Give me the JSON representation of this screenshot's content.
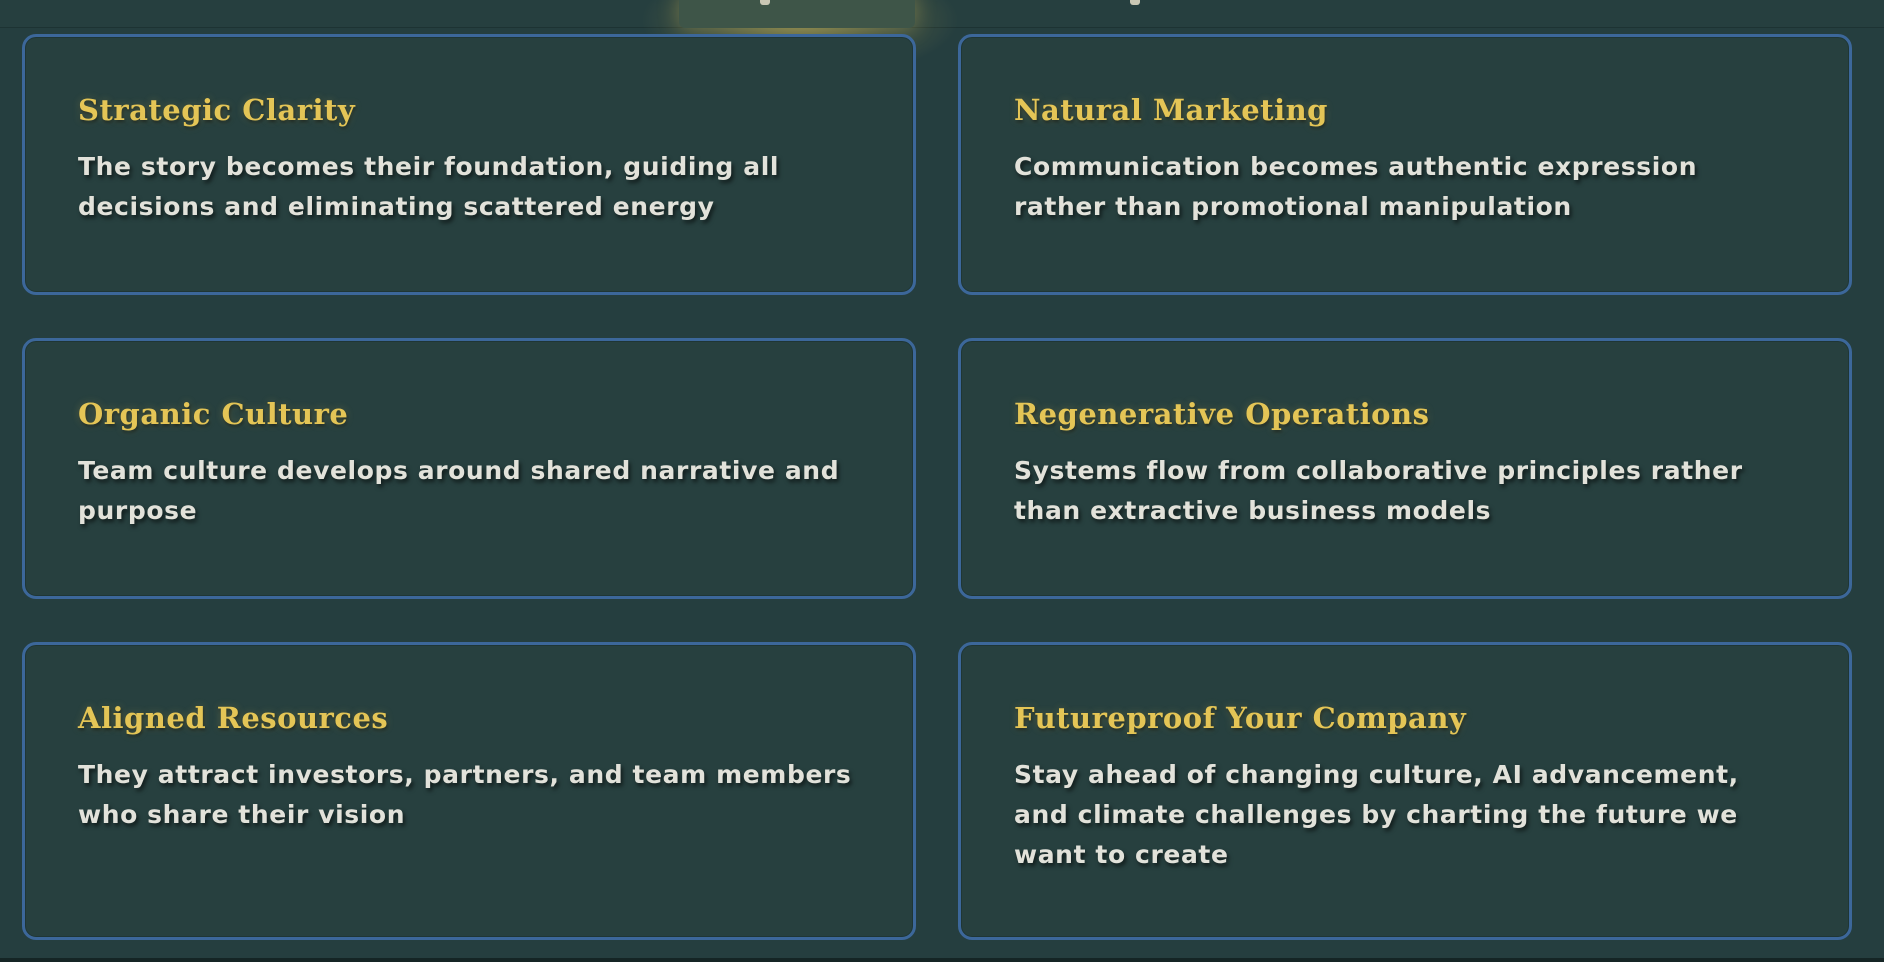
{
  "cards": [
    {
      "title": "Strategic Clarity",
      "text": "The story becomes their foundation, guiding all decisions and eliminating scattered energy"
    },
    {
      "title": "Natural Marketing",
      "text": "Communication becomes authentic expression rather than promotional manipulation"
    },
    {
      "title": "Organic Culture",
      "text": "Team culture develops around shared narrative and purpose"
    },
    {
      "title": "Regenerative Operations",
      "text": "Systems flow from collaborative principles rather than extractive business models"
    },
    {
      "title": "Aligned Resources",
      "text": "They attract investors, partners, and team members who share their vision"
    },
    {
      "title": "Futureproof Your Company",
      "text": "Stay ahead of changing culture, AI advancement, and climate challenges by charting the future we want to create"
    }
  ],
  "colors": {
    "background": "#253e3f",
    "card_border": "#3c679a",
    "title_gold": "#e4c556",
    "body_text": "#e2e2da"
  }
}
